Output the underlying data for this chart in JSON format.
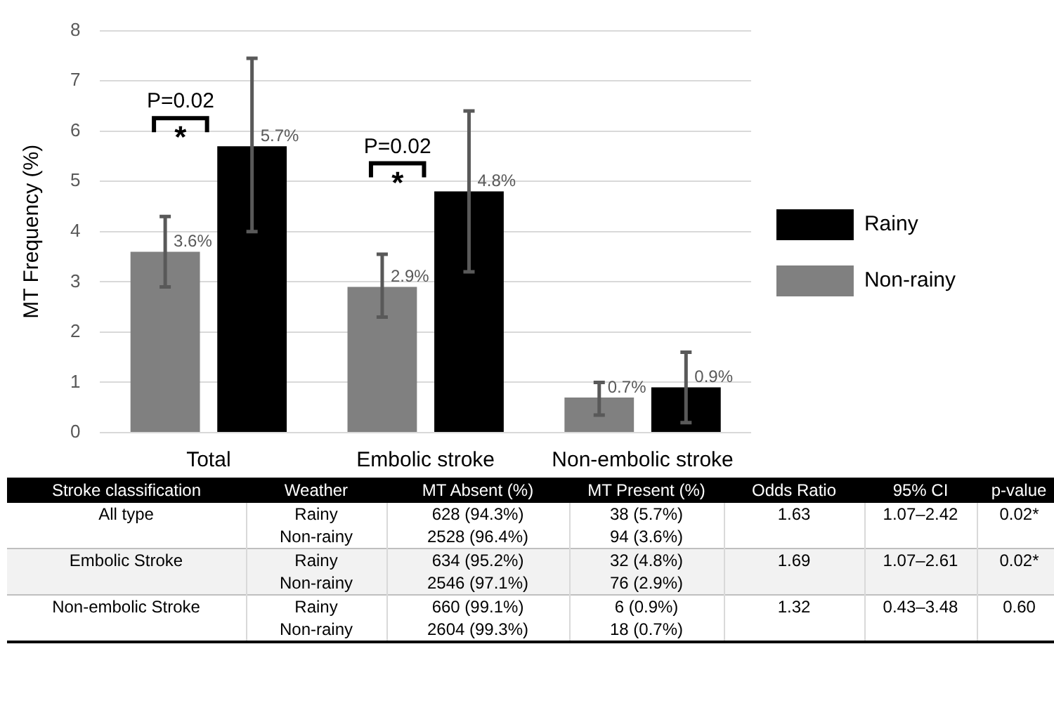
{
  "chart_data": [
    {
      "type": "bar",
      "ylabel": "MT Frequency (%)",
      "categories": [
        "Total",
        "Embolic stroke",
        "Non-embolic stroke"
      ],
      "series": [
        {
          "name": "Non-rainy",
          "color": "#808080",
          "values": [
            3.6,
            2.9,
            0.7
          ],
          "errors": [
            [
              2.9,
              4.3
            ],
            [
              2.3,
              3.55
            ],
            [
              0.35,
              1.0
            ]
          ],
          "value_labels": [
            "3.6%",
            "2.9%",
            "0.7%"
          ]
        },
        {
          "name": "Rainy",
          "color": "#000000",
          "values": [
            5.7,
            4.8,
            0.9
          ],
          "errors": [
            [
              4.0,
              7.45
            ],
            [
              3.2,
              6.4
            ],
            [
              0.2,
              1.6
            ]
          ],
          "value_labels": [
            "5.7%",
            "4.8%",
            "0.9%"
          ]
        }
      ],
      "ylim": [
        0,
        8
      ],
      "yticks": [
        0,
        1,
        2,
        3,
        4,
        5,
        6,
        7,
        8
      ],
      "grid": "y",
      "legend": "right",
      "annotations": [
        "P=0.02",
        "*",
        "P=0.02",
        "*"
      ]
    },
    {
      "type": "other",
      "categories": [
        "Stroke classification",
        "Weather",
        "MT Absent (%)",
        "MT Present (%)",
        "Odds Ratio",
        "95% CI",
        "p-value"
      ],
      "annotations": [
        "All type",
        "Rainy",
        "628 (94.3%)",
        "38 (5.7%)",
        "1.63",
        "1.07–2.42",
        "0.02*",
        null,
        "Non-rainy",
        "2528 (96.4%)",
        "94 (3.6%)",
        null,
        null,
        null,
        "Embolic Stroke",
        "Rainy",
        "634 (95.2%)",
        "32 (4.8%)",
        "1.69",
        "1.07–2.61",
        "0.02*",
        null,
        "Non-rainy",
        "2546 (97.1%)",
        "76 (2.9%)",
        null,
        null,
        null,
        "Non-embolic Stroke",
        "Rainy",
        "660 (99.1%)",
        "6 (0.9%)",
        "1.32",
        "0.43–3.48",
        "0.60",
        null,
        "Non-rainy",
        "2604 (99.3%)",
        "18 (0.7%)",
        null,
        null,
        null
      ]
    }
  ]
}
